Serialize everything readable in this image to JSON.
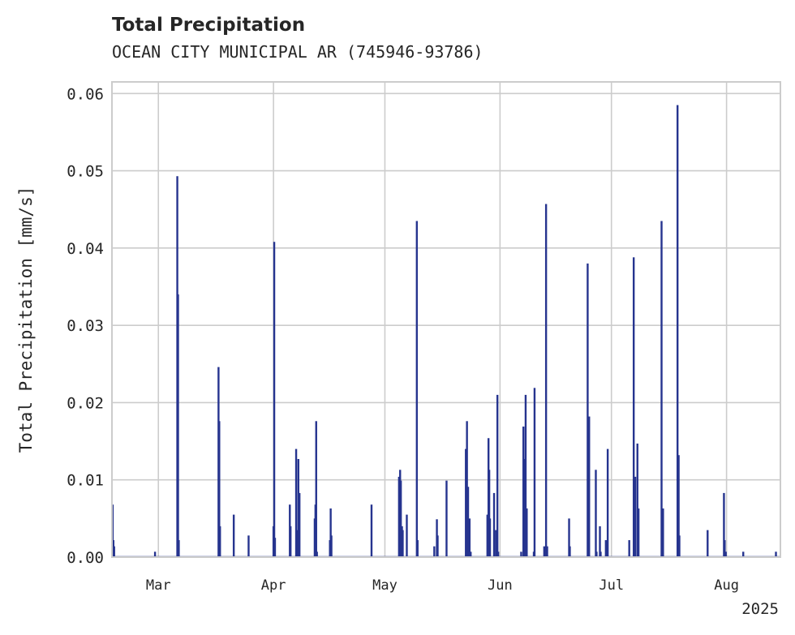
{
  "chart_data": {
    "type": "bar",
    "title": "Total Precipitation",
    "subtitle": "OCEAN CITY MUNICIPAL AR (745946-93786)",
    "xlabel": "",
    "ylabel": "Total Precipitation [mm/s]",
    "year_label": "2025",
    "ylim": [
      0,
      0.0615
    ],
    "yticks": [
      0.0,
      0.01,
      0.02,
      0.03,
      0.04,
      0.05,
      0.06
    ],
    "ytick_labels": [
      "0.00",
      "0.01",
      "0.02",
      "0.03",
      "0.04",
      "0.05",
      "0.06"
    ],
    "xlim_day": [
      -12.5,
      167.5
    ],
    "xticks": [
      {
        "label": "Mar",
        "day": 0
      },
      {
        "label": "Apr",
        "day": 31
      },
      {
        "label": "May",
        "day": 61
      },
      {
        "label": "Jun",
        "day": 92
      },
      {
        "label": "Jul",
        "day": 122
      },
      {
        "label": "Aug",
        "day": 153
      }
    ],
    "grid": true,
    "color": "#26348f",
    "series": [
      {
        "name": "Total Precipitation",
        "points": [
          [
            -12.3,
            0.0068
          ],
          [
            -12.1,
            0.0022
          ],
          [
            -11.9,
            0.0014
          ],
          [
            -0.9,
            0.0007
          ],
          [
            5.1,
            0.0493
          ],
          [
            5.3,
            0.034
          ],
          [
            5.5,
            0.0022
          ],
          [
            16.2,
            0.0246
          ],
          [
            16.4,
            0.0176
          ],
          [
            16.6,
            0.004
          ],
          [
            20.3,
            0.0055
          ],
          [
            24.3,
            0.0028
          ],
          [
            31.0,
            0.004
          ],
          [
            31.2,
            0.0408
          ],
          [
            31.4,
            0.0025
          ],
          [
            35.4,
            0.0068
          ],
          [
            35.6,
            0.004
          ],
          [
            37.1,
            0.014
          ],
          [
            37.4,
            0.0035
          ],
          [
            37.7,
            0.0127
          ],
          [
            38.0,
            0.0083
          ],
          [
            42.1,
            0.005
          ],
          [
            42.3,
            0.0068
          ],
          [
            42.5,
            0.0176
          ],
          [
            42.7,
            0.0007
          ],
          [
            46.2,
            0.0022
          ],
          [
            46.4,
            0.0063
          ],
          [
            46.6,
            0.0028
          ],
          [
            57.4,
            0.0068
          ],
          [
            64.8,
            0.0104
          ],
          [
            65.1,
            0.0113
          ],
          [
            65.3,
            0.0099
          ],
          [
            65.6,
            0.004
          ],
          [
            65.8,
            0.0035
          ],
          [
            66.9,
            0.0055
          ],
          [
            69.6,
            0.0435
          ],
          [
            69.8,
            0.0022
          ],
          [
            74.3,
            0.0014
          ],
          [
            75.0,
            0.0049
          ],
          [
            75.2,
            0.0028
          ],
          [
            77.6,
            0.0099
          ],
          [
            82.8,
            0.014
          ],
          [
            83.1,
            0.0176
          ],
          [
            83.4,
            0.0091
          ],
          [
            83.8,
            0.005
          ],
          [
            84.1,
            0.0007
          ],
          [
            88.6,
            0.0055
          ],
          [
            88.9,
            0.0154
          ],
          [
            89.1,
            0.0113
          ],
          [
            89.3,
            0.005
          ],
          [
            90.4,
            0.0083
          ],
          [
            90.9,
            0.0035
          ],
          [
            91.3,
            0.021
          ],
          [
            91.5,
            0.0007
          ],
          [
            97.7,
            0.0007
          ],
          [
            98.3,
            0.0169
          ],
          [
            98.6,
            0.0127
          ],
          [
            98.9,
            0.021
          ],
          [
            99.2,
            0.0063
          ],
          [
            101.1,
            0.0007
          ],
          [
            101.3,
            0.0219
          ],
          [
            103.9,
            0.0014
          ],
          [
            104.4,
            0.0457
          ],
          [
            104.7,
            0.0014
          ],
          [
            110.6,
            0.005
          ],
          [
            110.8,
            0.0014
          ],
          [
            115.6,
            0.038
          ],
          [
            116.0,
            0.0182
          ],
          [
            117.8,
            0.0113
          ],
          [
            118.0,
            0.0007
          ],
          [
            118.9,
            0.004
          ],
          [
            119.1,
            0.0007
          ],
          [
            120.5,
            0.0022
          ],
          [
            121.0,
            0.014
          ],
          [
            126.8,
            0.0022
          ],
          [
            128.0,
            0.0388
          ],
          [
            128.4,
            0.0104
          ],
          [
            129.0,
            0.0147
          ],
          [
            129.3,
            0.0063
          ],
          [
            135.5,
            0.0435
          ],
          [
            135.9,
            0.0063
          ],
          [
            139.8,
            0.0585
          ],
          [
            140.1,
            0.0132
          ],
          [
            140.3,
            0.0028
          ],
          [
            147.9,
            0.0035
          ],
          [
            152.3,
            0.0083
          ],
          [
            152.5,
            0.0022
          ],
          [
            152.8,
            0.0007
          ],
          [
            157.5,
            0.0007
          ],
          [
            166.3,
            0.0007
          ]
        ]
      }
    ]
  }
}
